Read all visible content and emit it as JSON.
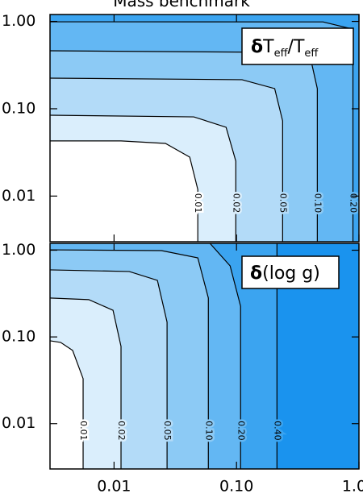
{
  "chart_data": {
    "type": "contour",
    "title": "Mass benchmark",
    "log_x": true,
    "log_y": true,
    "xlim": [
      0.003,
      1.0
    ],
    "xticks": [
      0.01,
      {
        "value": 0.1,
        "label": "0.10"
      },
      {
        "value": 1,
        "label": "1.00"
      }
    ],
    "panels": [
      {
        "annotation": [
          "δ",
          "T",
          "eff",
          "/T",
          "eff"
        ],
        "ylim": [
          0.003,
          1.2
        ],
        "yticks": [
          {
            "value": 1,
            "label": "1.00"
          },
          {
            "value": 0.1,
            "label": "0.10"
          },
          0.01
        ],
        "background": "#ffffff",
        "levels": [
          0.01,
          0.02,
          0.05,
          0.1,
          0.2
        ],
        "level_labels": [
          "0.01",
          "0.02",
          "0.05",
          "0.10",
          "0.20"
        ],
        "colors": [
          "#daeefc",
          "#b3dbf8",
          "#8ccaf5",
          "#63b7f3",
          "#3ba4f0"
        ],
        "contours": [
          {
            "x": [
              0.0483,
              0.0483,
              0.0415,
              0.0263,
              0.0114,
              0.003
            ],
            "y": [
              0.003,
              0.0119,
              0.0279,
              0.0401,
              0.0428,
              0.0428
            ]
          },
          {
            "x": [
              0.0987,
              0.0987,
              0.0822,
              0.0448,
              0.003
            ],
            "y": [
              0.003,
              0.0251,
              0.0614,
              0.0807,
              0.0843
            ]
          },
          {
            "x": [
              0.238,
              0.238,
              0.205,
              0.111,
              0.003
            ],
            "y": [
              0.003,
              0.0726,
              0.17,
              0.215,
              0.224
            ]
          },
          {
            "x": [
              0.457,
              0.457,
              0.406,
              0.238,
              0.003
            ],
            "y": [
              0.003,
              0.17,
              0.357,
              0.442,
              0.461
            ]
          },
          {
            "x": [
              0.893,
              0.893,
              0.828,
              0.509,
              0.003
            ],
            "y": [
              0.003,
              0.397,
              0.836,
              0.987,
              0.99
            ]
          }
        ]
      },
      {
        "annotation": [
          "δ",
          "(log g)"
        ],
        "ylim": [
          0.003,
          1.2
        ],
        "yticks": [
          {
            "value": 1,
            "label": "1.00"
          },
          {
            "value": 0.1,
            "label": "0.10"
          },
          0.01
        ],
        "background": "#ffffff",
        "levels": [
          0.01,
          0.02,
          0.05,
          0.1,
          0.2,
          0.4
        ],
        "level_labels": [
          "0.01",
          "0.02",
          "0.05",
          "0.10",
          "0.20",
          "0.40"
        ],
        "colors": [
          "#daeefc",
          "#b3dbf8",
          "#8ccaf5",
          "#63b7f3",
          "#3ba4f0",
          "#1a93ee"
        ],
        "contours": [
          {
            "x": [
              0.00559,
              0.00559,
              0.00459,
              0.00366,
              0.003
            ],
            "y": [
              0.003,
              0.033,
              0.0698,
              0.0865,
              0.0902
            ]
          },
          {
            "x": [
              0.0114,
              0.0114,
              0.00981,
              0.00622,
              0.003
            ],
            "y": [
              0.003,
              0.0777,
              0.203,
              0.269,
              0.281
            ]
          },
          {
            "x": [
              0.0271,
              0.0271,
              0.0226,
              0.0133,
              0.003
            ],
            "y": [
              0.003,
              0.148,
              0.449,
              0.568,
              0.593
            ]
          },
          {
            "x": [
              0.0589,
              0.0589,
              0.0483,
              0.0244,
              0.003
            ],
            "y": [
              0.003,
              0.281,
              0.816,
              0.99,
              1.01
            ]
          },
          {
            "x": [
              0.108,
              0.108,
              0.0887,
              0.0607
            ],
            "y": [
              0.003,
              0.226,
              0.659,
              1.2
            ]
          },
          {
            "x": [
              0.214,
              0.214
            ],
            "y": [
              0.003,
              1.2
            ]
          }
        ]
      }
    ]
  }
}
